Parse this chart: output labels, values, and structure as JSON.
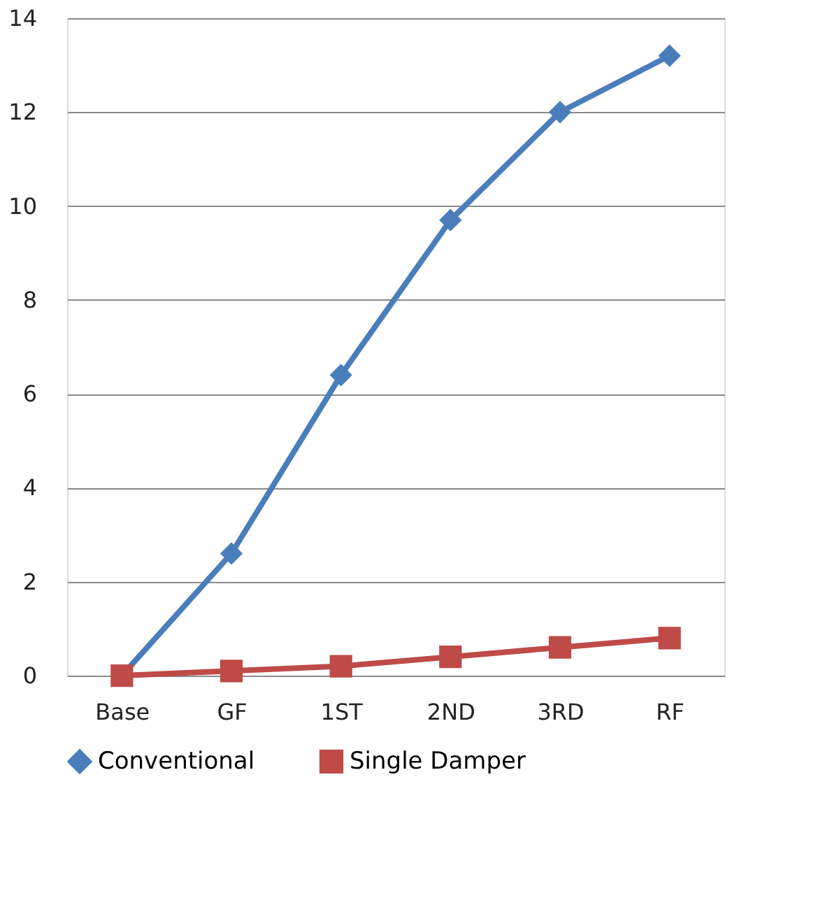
{
  "chart_data": {
    "type": "line",
    "categories": [
      "Base",
      "GF",
      "1ST",
      "2ND",
      "3RD",
      "RF"
    ],
    "series": [
      {
        "name": "Conventional",
        "color": "#4a7ebb",
        "marker": "diamond",
        "values": [
          0,
          2.6,
          6.4,
          9.7,
          12,
          13.2
        ]
      },
      {
        "name": "Single Damper",
        "color": "#be4b48",
        "marker": "square",
        "values": [
          0,
          0.1,
          0.2,
          0.4,
          0.6,
          0.8
        ]
      }
    ],
    "ylim": [
      0,
      14
    ],
    "yticks": [
      0,
      2,
      4,
      6,
      8,
      10,
      12,
      14
    ],
    "grid": "y",
    "legend": "bottom",
    "line_style": "solid"
  }
}
